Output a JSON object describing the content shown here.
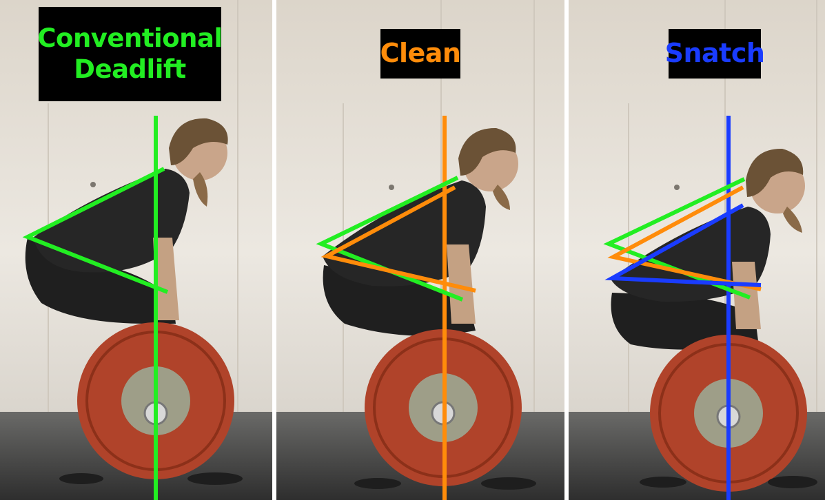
{
  "panels": [
    {
      "id": "deadlift",
      "label": "Conventional\nDeadlift",
      "color": "#22ee22"
    },
    {
      "id": "clean",
      "label": "Clean",
      "color": "#ff8c0a"
    },
    {
      "id": "snatch",
      "label": "Snatch",
      "color": "#1a3cff"
    }
  ],
  "colors": {
    "wall": "#e9e4dc",
    "floor": "#4a4a4a",
    "plate": "#b0432a",
    "hub": "#9e9e88",
    "shirt": "#262626",
    "skin": "#c9a58a",
    "hair": "#6b5236",
    "divider": "#ffffff"
  }
}
